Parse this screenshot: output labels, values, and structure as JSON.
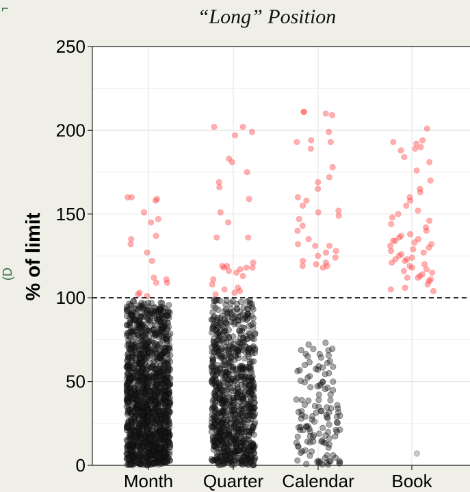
{
  "chart_data": {
    "type": "scatter",
    "title": "“Long” Position",
    "xlabel": "",
    "ylabel": "% of limit",
    "categories": [
      "Month",
      "Quarter",
      "Calendar",
      "Book"
    ],
    "ylim": [
      0,
      250
    ],
    "yticks": [
      0,
      50,
      100,
      150,
      200,
      250
    ],
    "grid": true,
    "reference_line": {
      "y": 100,
      "style": "dashed"
    },
    "colors": {
      "above_limit": "#ff4040",
      "below_limit": "#1a1a1a",
      "reference": "#000000",
      "background": "#ffffff",
      "grid": "#e6e6e6"
    },
    "series": [
      {
        "category": "Month",
        "above_limit_values": [
          101,
          102,
          103,
          109,
          109,
          111,
          112,
          122,
          127,
          132,
          135,
          137,
          145,
          147,
          151,
          158,
          159,
          160,
          160
        ],
        "below_limit_count": 1500,
        "below_limit_range": [
          0,
          98
        ]
      },
      {
        "category": "Quarter",
        "above_limit_values": [
          102,
          103,
          104,
          105,
          106,
          108,
          111,
          113,
          115,
          116,
          117,
          118,
          118,
          118,
          119,
          119,
          121,
          136,
          136,
          145,
          151,
          159,
          166,
          169,
          175,
          181,
          183,
          197,
          199,
          202,
          202
        ],
        "below_limit_count": 900,
        "below_limit_range": [
          0,
          99
        ]
      },
      {
        "category": "Calendar",
        "above_limit_values": [
          118,
          119,
          119,
          120,
          121,
          122,
          124,
          125,
          127,
          128,
          131,
          131,
          132,
          135,
          140,
          143,
          147,
          149,
          151,
          152,
          155,
          158,
          160,
          165,
          169,
          172,
          178,
          189,
          193,
          193,
          194,
          199,
          209,
          210,
          211,
          211
        ],
        "below_limit_count": 130,
        "below_limit_range": [
          0,
          75
        ]
      },
      {
        "category": "Book",
        "above_limit_values": [
          104,
          105,
          106,
          108,
          110,
          111,
          112,
          112,
          113,
          114,
          115,
          116,
          117,
          118,
          119,
          120,
          121,
          122,
          123,
          123,
          124,
          125,
          126,
          127,
          128,
          129,
          130,
          131,
          132,
          133,
          134,
          134,
          135,
          136,
          137,
          138,
          140,
          142,
          144,
          146,
          148,
          150,
          152,
          155,
          158,
          160,
          163,
          165,
          170,
          176,
          181,
          184,
          188,
          189,
          190,
          192,
          193,
          194,
          201
        ],
        "below_limit_values": [
          7
        ]
      }
    ]
  },
  "edge_marks": {
    "top_left": "⌐",
    "left_mid": "(D"
  }
}
